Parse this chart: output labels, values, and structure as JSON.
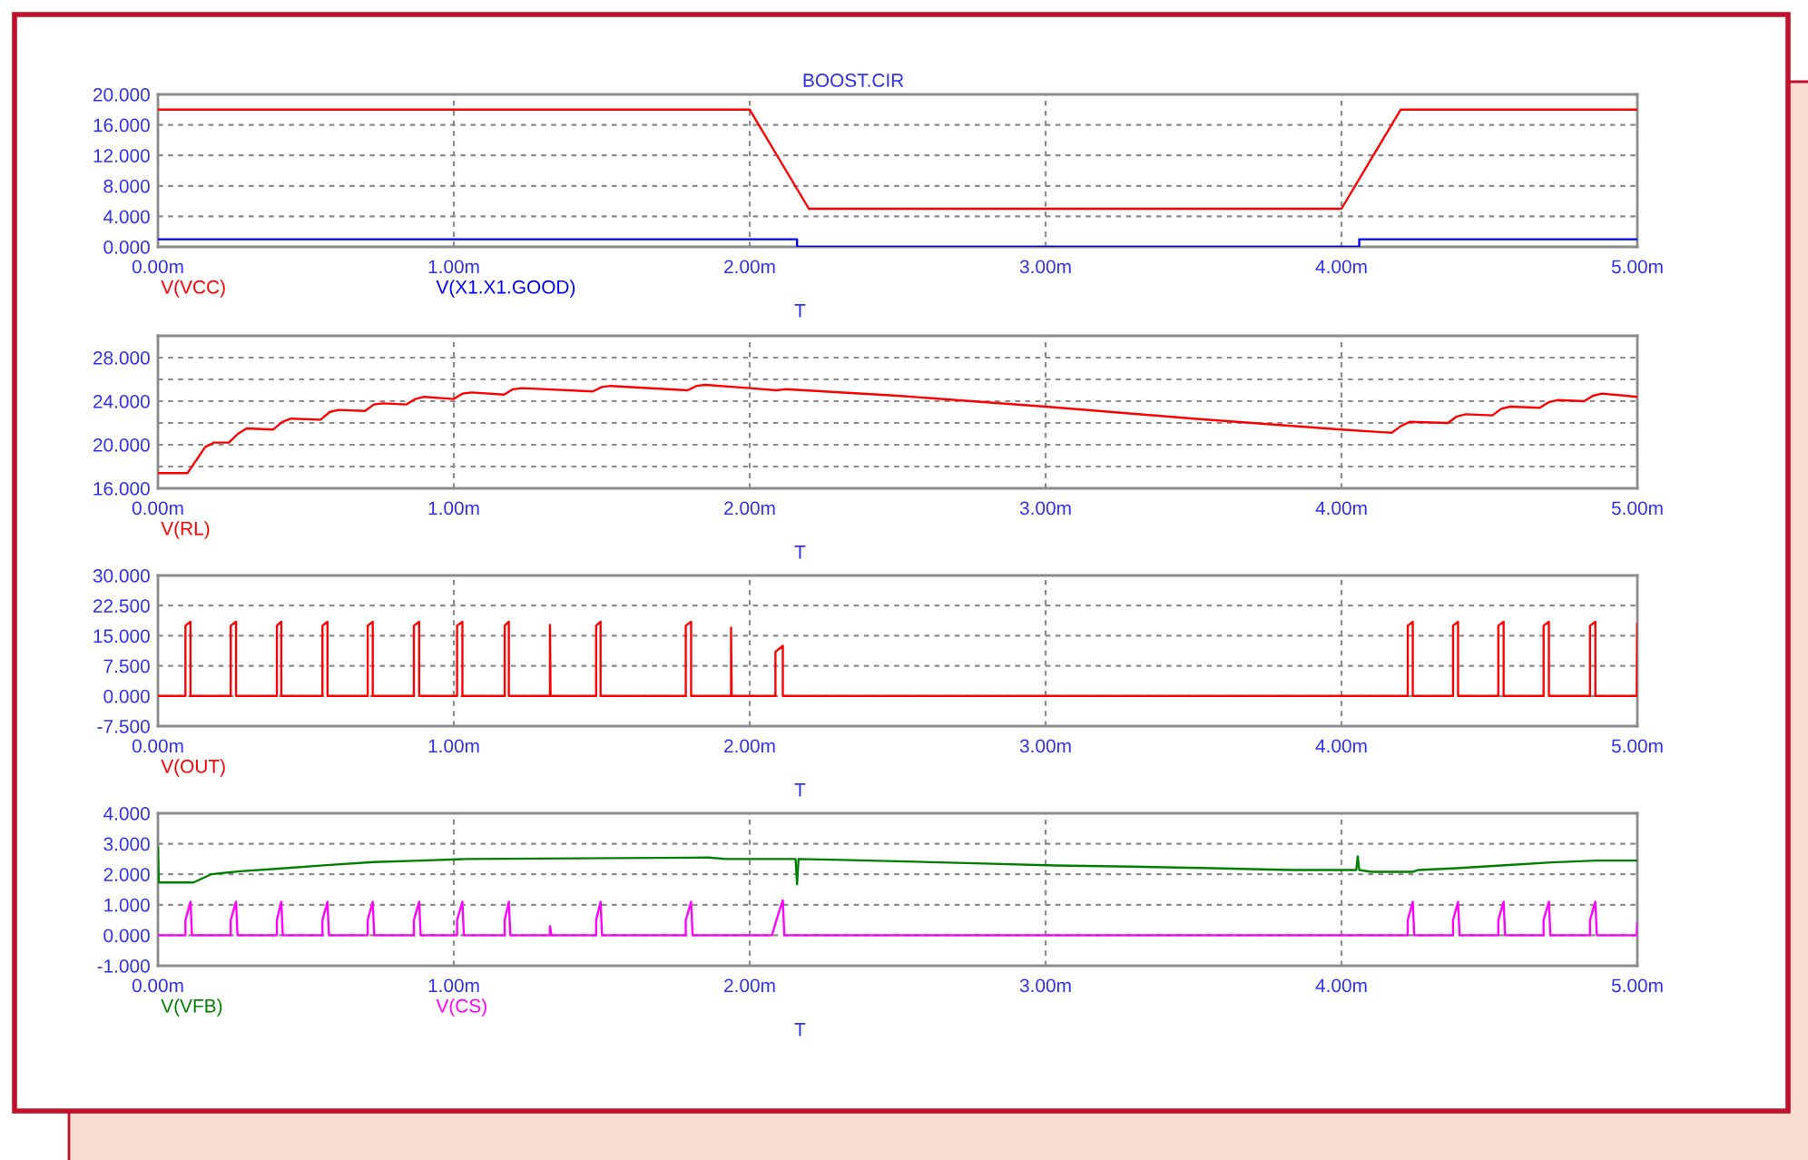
{
  "chart_data": [
    {
      "type": "line",
      "title": "BOOST.CIR",
      "xlabel": "T",
      "xlim": [
        0,
        5
      ],
      "xticks": [
        {
          "value": 0,
          "label": "0.00m"
        },
        {
          "value": 1,
          "label": "1.00m"
        },
        {
          "value": 2,
          "label": "2.00m"
        },
        {
          "value": 3,
          "label": "3.00m"
        },
        {
          "value": 4,
          "label": "4.00m"
        },
        {
          "value": 5,
          "label": "5.00m"
        }
      ],
      "ylim": [
        0,
        20
      ],
      "yticks": [
        {
          "value": 0,
          "label": "0.000"
        },
        {
          "value": 4,
          "label": "4.000"
        },
        {
          "value": 8,
          "label": "8.000"
        },
        {
          "value": 12,
          "label": "12.000"
        },
        {
          "value": 16,
          "label": "16.000"
        },
        {
          "value": 20,
          "label": "20.000"
        }
      ],
      "grid": true,
      "legend": "bottom left",
      "series": [
        {
          "name": "V(VCC)",
          "color": "#ff0000",
          "x": [
            0,
            2.0,
            2.2,
            4.0,
            4.2,
            5
          ],
          "values": [
            18,
            18,
            5,
            5,
            18,
            18
          ]
        },
        {
          "name": "V(X1.X1.GOOD)",
          "color": "#0000ff",
          "x": [
            0,
            2.16,
            2.16,
            4.06,
            4.06,
            5
          ],
          "values": [
            1,
            1,
            0,
            0,
            1,
            1
          ]
        }
      ]
    },
    {
      "type": "line",
      "xlabel": "T",
      "xlim": [
        0,
        5
      ],
      "xticks": [
        {
          "value": 0,
          "label": "0.00m"
        },
        {
          "value": 1,
          "label": "1.00m"
        },
        {
          "value": 2,
          "label": "2.00m"
        },
        {
          "value": 3,
          "label": "3.00m"
        },
        {
          "value": 4,
          "label": "4.00m"
        },
        {
          "value": 5,
          "label": "5.00m"
        }
      ],
      "ylim": [
        16,
        30
      ],
      "yticks": [
        {
          "value": 16,
          "label": "16.000"
        },
        {
          "value": 18,
          "label": null
        },
        {
          "value": 20,
          "label": "20.000"
        },
        {
          "value": 22,
          "label": null
        },
        {
          "value": 24,
          "label": "24.000"
        },
        {
          "value": 26,
          "label": null
        },
        {
          "value": 28,
          "label": "28.000"
        }
      ],
      "grid": true,
      "legend": "bottom left",
      "series": [
        {
          "name": "V(RL)",
          "color": "#ff0000",
          "x": [
            0,
            0.1,
            0.13,
            0.16,
            0.19,
            0.24,
            0.27,
            0.3,
            0.39,
            0.42,
            0.45,
            0.55,
            0.58,
            0.61,
            0.7,
            0.73,
            0.76,
            0.84,
            0.87,
            0.9,
            1.0,
            1.03,
            1.06,
            1.17,
            1.2,
            1.23,
            1.47,
            1.5,
            1.53,
            1.79,
            1.82,
            1.85,
            2.0,
            2.09,
            2.12,
            2.5,
            3.0,
            3.5,
            4.0,
            4.17,
            4.2,
            4.23,
            4.36,
            4.39,
            4.42,
            4.51,
            4.54,
            4.57,
            4.67,
            4.7,
            4.73,
            4.82,
            4.85,
            4.88,
            5.0
          ],
          "values": [
            17.4,
            17.4,
            18.6,
            19.8,
            20.2,
            20.2,
            21.0,
            21.5,
            21.4,
            22.1,
            22.4,
            22.3,
            23.0,
            23.2,
            23.1,
            23.7,
            23.8,
            23.7,
            24.2,
            24.4,
            24.2,
            24.7,
            24.8,
            24.6,
            25.1,
            25.2,
            24.9,
            25.3,
            25.4,
            25.0,
            25.4,
            25.5,
            25.2,
            25.0,
            25.1,
            24.5,
            23.5,
            22.4,
            21.4,
            21.1,
            21.7,
            22.1,
            22.0,
            22.6,
            22.8,
            22.7,
            23.3,
            23.5,
            23.4,
            23.9,
            24.1,
            24.0,
            24.5,
            24.7,
            24.4
          ]
        }
      ]
    },
    {
      "type": "line",
      "xlabel": "T",
      "xlim": [
        0,
        5
      ],
      "xticks": [
        {
          "value": 0,
          "label": "0.00m"
        },
        {
          "value": 1,
          "label": "1.00m"
        },
        {
          "value": 2,
          "label": "2.00m"
        },
        {
          "value": 3,
          "label": "3.00m"
        },
        {
          "value": 4,
          "label": "4.00m"
        },
        {
          "value": 5,
          "label": "5.00m"
        }
      ],
      "ylim": [
        -7.5,
        30
      ],
      "yticks": [
        {
          "value": -7.5,
          "label": "-7.500"
        },
        {
          "value": 0,
          "label": "0.000"
        },
        {
          "value": 7.5,
          "label": "7.500"
        },
        {
          "value": 15,
          "label": "15.000"
        },
        {
          "value": 22.5,
          "label": "22.500"
        },
        {
          "value": 30,
          "label": "30.000"
        }
      ],
      "grid": true,
      "legend": "bottom left",
      "series": [
        {
          "name": "V(OUT)",
          "color": "#ff0000",
          "x": [
            0,
            0.093,
            0.093,
            0.11,
            0.11,
            0.246,
            0.246,
            0.264,
            0.264,
            0.402,
            0.402,
            0.417,
            0.417,
            0.556,
            0.556,
            0.573,
            0.573,
            0.709,
            0.709,
            0.726,
            0.726,
            0.865,
            0.865,
            0.883,
            0.883,
            1.011,
            1.011,
            1.029,
            1.029,
            1.172,
            1.172,
            1.186,
            1.186,
            1.325,
            1.325,
            1.327,
            1.481,
            1.481,
            1.496,
            1.496,
            1.784,
            1.784,
            1.802,
            1.802,
            1.937,
            1.937,
            1.939,
            2.087,
            2.087,
            2.112,
            2.112,
            4.224,
            4.224,
            4.241,
            4.241,
            4.377,
            4.377,
            4.394,
            4.394,
            4.53,
            4.53,
            4.548,
            4.548,
            4.683,
            4.683,
            4.701,
            4.701,
            4.84,
            4.84,
            4.858,
            4.858,
            4.998,
            5.0
          ],
          "values": [
            0,
            0,
            17.5,
            18.5,
            0,
            0,
            17.5,
            18.5,
            0,
            0,
            17.5,
            18.5,
            0,
            0,
            17.5,
            18.5,
            0,
            0,
            17.5,
            18.5,
            0,
            0,
            17.5,
            18.5,
            0,
            0,
            17.5,
            18.5,
            0,
            0,
            17.5,
            18.5,
            0,
            0,
            17.7,
            0,
            0,
            17.5,
            18.5,
            0,
            0,
            17.5,
            18.5,
            0,
            0,
            17.0,
            0,
            0,
            11.0,
            12.5,
            0,
            0,
            17.5,
            18.5,
            0,
            0,
            17.5,
            18.5,
            0,
            0,
            17.5,
            18.5,
            0,
            0,
            17.5,
            18.5,
            0,
            0,
            17.5,
            18.5,
            0,
            0,
            18.0
          ]
        }
      ]
    },
    {
      "type": "line",
      "xlabel": "T",
      "xlim": [
        0,
        5
      ],
      "xticks": [
        {
          "value": 0,
          "label": "0.00m"
        },
        {
          "value": 1,
          "label": "1.00m"
        },
        {
          "value": 2,
          "label": "2.00m"
        },
        {
          "value": 3,
          "label": "3.00m"
        },
        {
          "value": 4,
          "label": "4.00m"
        },
        {
          "value": 5,
          "label": "5.00m"
        }
      ],
      "ylim": [
        -1,
        4
      ],
      "yticks": [
        {
          "value": -1,
          "label": "-1.000"
        },
        {
          "value": 0,
          "label": "0.000"
        },
        {
          "value": 1,
          "label": "1.000"
        },
        {
          "value": 2,
          "label": "2.000"
        },
        {
          "value": 3,
          "label": "3.000"
        },
        {
          "value": 4,
          "label": "4.000"
        }
      ],
      "grid": true,
      "legend": "bottom left",
      "series": [
        {
          "name": "V(VFB)",
          "color": "#008000",
          "x": [
            0,
            0.003,
            0.12,
            0.18,
            0.28,
            0.43,
            0.57,
            0.73,
            0.89,
            1.04,
            1.86,
            1.92,
            2.155,
            2.16,
            2.165,
            2.31,
            2.56,
            2.79,
            3.03,
            3.29,
            3.56,
            3.83,
            4.05,
            4.055,
            4.06,
            4.1,
            4.24,
            4.26,
            4.39,
            4.54,
            4.71,
            4.86,
            5.0
          ],
          "values": [
            2.9,
            1.73,
            1.73,
            2.0,
            2.1,
            2.2,
            2.3,
            2.4,
            2.45,
            2.5,
            2.55,
            2.5,
            2.5,
            1.67,
            2.5,
            2.47,
            2.41,
            2.35,
            2.29,
            2.25,
            2.2,
            2.14,
            2.14,
            2.59,
            2.14,
            2.08,
            2.08,
            2.14,
            2.2,
            2.29,
            2.39,
            2.45,
            2.45
          ]
        },
        {
          "name": "V(CS)",
          "color": "#ff00ff",
          "x": [
            0,
            0.093,
            0.093,
            0.11,
            0.115,
            0.246,
            0.246,
            0.264,
            0.269,
            0.402,
            0.402,
            0.417,
            0.422,
            0.556,
            0.556,
            0.573,
            0.578,
            0.709,
            0.709,
            0.726,
            0.731,
            0.865,
            0.865,
            0.883,
            0.888,
            1.011,
            1.011,
            1.029,
            1.034,
            1.172,
            1.172,
            1.186,
            1.191,
            1.325,
            1.325,
            1.33,
            1.481,
            1.481,
            1.496,
            1.501,
            1.784,
            1.784,
            1.802,
            1.807,
            2.075,
            2.1,
            2.112,
            2.117,
            4.224,
            4.224,
            4.241,
            4.246,
            4.377,
            4.377,
            4.394,
            4.399,
            4.53,
            4.53,
            4.548,
            4.553,
            4.683,
            4.683,
            4.701,
            4.706,
            4.84,
            4.84,
            4.858,
            4.863,
            4.998,
            5.0
          ],
          "values": [
            0,
            0,
            0.5,
            1.1,
            0,
            0,
            0.5,
            1.1,
            0,
            0,
            0.5,
            1.1,
            0,
            0,
            0.5,
            1.1,
            0,
            0,
            0.5,
            1.1,
            0,
            0,
            0.5,
            1.1,
            0,
            0,
            0.5,
            1.1,
            0,
            0,
            0.5,
            1.1,
            0,
            0,
            0.3,
            0,
            0,
            0.5,
            1.1,
            0,
            0,
            0.5,
            1.1,
            0,
            0,
            0.8,
            1.15,
            0,
            0,
            0.5,
            1.1,
            0,
            0,
            0.5,
            1.1,
            0,
            0,
            0.5,
            1.1,
            0,
            0,
            0.5,
            1.1,
            0,
            0,
            0.5,
            1.1,
            0,
            0,
            0.4
          ]
        }
      ]
    }
  ]
}
